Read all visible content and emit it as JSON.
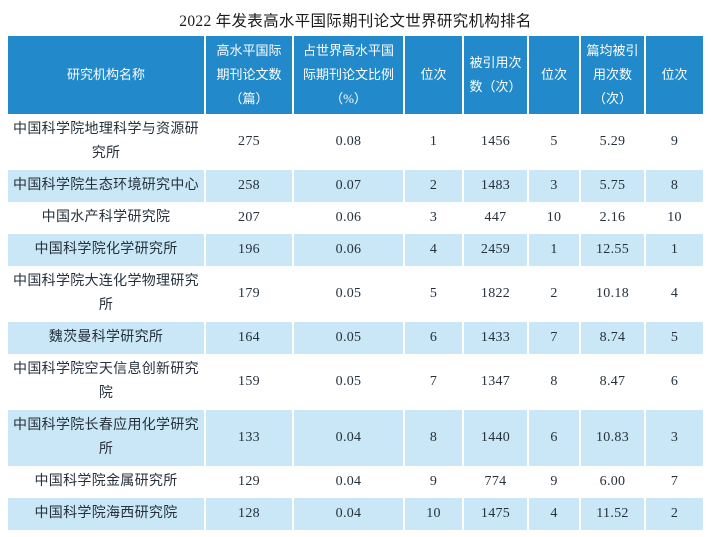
{
  "title": "2022 年发表高水平国际期刊论文世界研究机构排名",
  "colors": {
    "header_bg": "#2289cb",
    "alt_row_bg": "#c9e7f6",
    "body_text": "#26313c"
  },
  "table": {
    "headers": [
      "研究机构名称",
      "高水平国际\n期刊论文数\n（篇）",
      "占世界高水平国\n际期刊论文比例\n（%）",
      "位次",
      "被引用次\n数（次）",
      "位次",
      "篇均被引\n用次数\n（次）",
      "位次"
    ],
    "rows": [
      [
        "中国科学院地理科学与资源研\n究所",
        "275",
        "0.08",
        "1",
        "1456",
        "5",
        "5.29",
        "9"
      ],
      [
        "中国科学院生态环境研究中心",
        "258",
        "0.07",
        "2",
        "1483",
        "3",
        "5.75",
        "8"
      ],
      [
        "中国水产科学研究院",
        "207",
        "0.06",
        "3",
        "447",
        "10",
        "2.16",
        "10"
      ],
      [
        "中国科学院化学研究所",
        "196",
        "0.06",
        "4",
        "2459",
        "1",
        "12.55",
        "1"
      ],
      [
        "中国科学院大连化学物理研究\n所",
        "179",
        "0.05",
        "5",
        "1822",
        "2",
        "10.18",
        "4"
      ],
      [
        "魏茨曼科学研究所",
        "164",
        "0.05",
        "6",
        "1433",
        "7",
        "8.74",
        "5"
      ],
      [
        "中国科学院空天信息创新研究\n院",
        "159",
        "0.05",
        "7",
        "1347",
        "8",
        "8.47",
        "6"
      ],
      [
        "中国科学院长春应用化学研究\n所",
        "133",
        "0.04",
        "8",
        "1440",
        "6",
        "10.83",
        "3"
      ],
      [
        "中国科学院金属研究所",
        "129",
        "0.04",
        "9",
        "774",
        "9",
        "6.00",
        "7"
      ],
      [
        "中国科学院海西研究院",
        "128",
        "0.04",
        "10",
        "1475",
        "4",
        "11.52",
        "2"
      ]
    ]
  }
}
